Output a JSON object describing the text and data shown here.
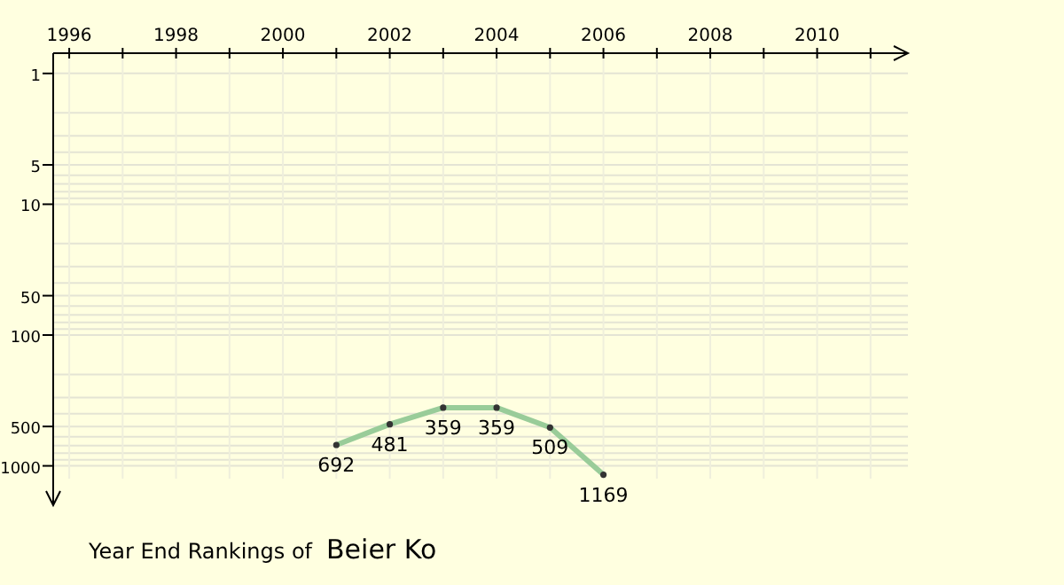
{
  "chart_data": {
    "type": "line",
    "title": "Year End Rankings of",
    "subtitle": "Beier Ko",
    "x": [
      2001,
      2002,
      2003,
      2004,
      2005,
      2006
    ],
    "series": [
      {
        "color": "#99cc99",
        "values": [
          692,
          481,
          359,
          359,
          509,
          1169
        ]
      }
    ],
    "xlim": [
      1995.7,
      2011.7
    ],
    "xticks": [
      1996,
      {
        "value": 1997,
        "label": null
      },
      1998,
      {
        "value": 1999,
        "label": null
      },
      2000,
      {
        "value": 2001,
        "label": null
      },
      2002,
      {
        "value": 2003,
        "label": null
      },
      2004,
      {
        "value": 2005,
        "label": null
      },
      2006,
      {
        "value": 2007,
        "label": null
      },
      2008,
      {
        "value": 2009,
        "label": null
      },
      2010,
      {
        "value": 2011,
        "label": null
      }
    ],
    "ylim": [
      2000,
      0.7
    ],
    "log": true,
    "yticks": [
      1,
      {
        "value": 2,
        "label": null
      },
      {
        "value": 3,
        "label": null
      },
      {
        "value": 4,
        "label": null
      },
      5,
      {
        "value": 6,
        "label": null
      },
      {
        "value": 7,
        "label": null
      },
      {
        "value": 8,
        "label": null
      },
      {
        "value": 9,
        "label": null
      },
      10,
      {
        "value": 20,
        "label": null
      },
      {
        "value": 30,
        "label": null
      },
      {
        "value": 40,
        "label": null
      },
      50,
      {
        "value": 60,
        "label": null
      },
      {
        "value": 70,
        "label": null
      },
      {
        "value": 80,
        "label": null
      },
      {
        "value": 90,
        "label": null
      },
      100,
      {
        "value": 200,
        "label": null
      },
      {
        "value": 300,
        "label": null
      },
      {
        "value": 400,
        "label": null
      },
      500,
      {
        "value": 600,
        "label": null
      },
      {
        "value": 700,
        "label": null
      },
      {
        "value": 800,
        "label": null
      },
      {
        "value": 900,
        "label": null
      },
      1000
    ],
    "grid": true,
    "marker": "circle",
    "data_labels": true
  }
}
